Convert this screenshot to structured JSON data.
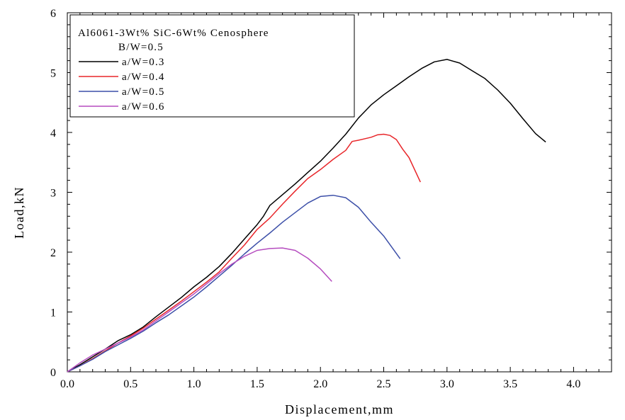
{
  "chart_data": {
    "type": "line",
    "xlabel": "Displacement,mm",
    "ylabel": "Load,kN",
    "xlim": [
      0,
      4.3
    ],
    "ylim": [
      0,
      6
    ],
    "xticks": [
      "0.0",
      "0.5",
      "1.0",
      "1.5",
      "2.0",
      "2.5",
      "3.0",
      "3.5",
      "4.0"
    ],
    "yticks": [
      "0",
      "1",
      "2",
      "3",
      "4",
      "5",
      "6"
    ],
    "grid": false,
    "legend_position": "top-left",
    "legend_title": [
      "Al6061-3Wt% SiC-6Wt% Cenosphere",
      "B/W=0.5"
    ],
    "series": [
      {
        "name": "a/W=0.3",
        "color": "#000000",
        "points": [
          [
            0,
            0
          ],
          [
            0.1,
            0.12
          ],
          [
            0.2,
            0.25
          ],
          [
            0.3,
            0.38
          ],
          [
            0.4,
            0.52
          ],
          [
            0.5,
            0.62
          ],
          [
            0.6,
            0.75
          ],
          [
            0.7,
            0.92
          ],
          [
            0.8,
            1.08
          ],
          [
            0.9,
            1.24
          ],
          [
            1.0,
            1.42
          ],
          [
            1.1,
            1.58
          ],
          [
            1.2,
            1.76
          ],
          [
            1.3,
            1.98
          ],
          [
            1.4,
            2.22
          ],
          [
            1.5,
            2.46
          ],
          [
            1.55,
            2.6
          ],
          [
            1.6,
            2.78
          ],
          [
            1.7,
            2.96
          ],
          [
            1.8,
            3.14
          ],
          [
            1.9,
            3.33
          ],
          [
            2.0,
            3.52
          ],
          [
            2.1,
            3.74
          ],
          [
            2.2,
            3.97
          ],
          [
            2.3,
            4.24
          ],
          [
            2.4,
            4.46
          ],
          [
            2.5,
            4.63
          ],
          [
            2.6,
            4.78
          ],
          [
            2.7,
            4.93
          ],
          [
            2.8,
            5.07
          ],
          [
            2.9,
            5.18
          ],
          [
            3.0,
            5.22
          ],
          [
            3.1,
            5.16
          ],
          [
            3.2,
            5.03
          ],
          [
            3.3,
            4.9
          ],
          [
            3.4,
            4.71
          ],
          [
            3.5,
            4.49
          ],
          [
            3.6,
            4.23
          ],
          [
            3.7,
            3.98
          ],
          [
            3.78,
            3.84
          ]
        ]
      },
      {
        "name": "a/W=0.4",
        "color": "#e8262a",
        "points": [
          [
            0,
            0
          ],
          [
            0.1,
            0.1
          ],
          [
            0.2,
            0.22
          ],
          [
            0.3,
            0.35
          ],
          [
            0.4,
            0.48
          ],
          [
            0.5,
            0.6
          ],
          [
            0.6,
            0.73
          ],
          [
            0.7,
            0.88
          ],
          [
            0.8,
            1.03
          ],
          [
            0.9,
            1.18
          ],
          [
            1.0,
            1.34
          ],
          [
            1.1,
            1.5
          ],
          [
            1.2,
            1.67
          ],
          [
            1.3,
            1.9
          ],
          [
            1.4,
            2.12
          ],
          [
            1.5,
            2.38
          ],
          [
            1.6,
            2.57
          ],
          [
            1.7,
            2.8
          ],
          [
            1.8,
            3.02
          ],
          [
            1.9,
            3.23
          ],
          [
            2.0,
            3.38
          ],
          [
            2.1,
            3.55
          ],
          [
            2.2,
            3.7
          ],
          [
            2.25,
            3.85
          ],
          [
            2.3,
            3.87
          ],
          [
            2.4,
            3.92
          ],
          [
            2.45,
            3.96
          ],
          [
            2.5,
            3.97
          ],
          [
            2.55,
            3.95
          ],
          [
            2.6,
            3.88
          ],
          [
            2.65,
            3.72
          ],
          [
            2.7,
            3.58
          ],
          [
            2.79,
            3.17
          ]
        ]
      },
      {
        "name": "a/W=0.5",
        "color": "#3c4fa8",
        "points": [
          [
            0,
            0
          ],
          [
            0.1,
            0.1
          ],
          [
            0.2,
            0.21
          ],
          [
            0.3,
            0.34
          ],
          [
            0.4,
            0.45
          ],
          [
            0.5,
            0.56
          ],
          [
            0.6,
            0.68
          ],
          [
            0.7,
            0.82
          ],
          [
            0.8,
            0.95
          ],
          [
            0.9,
            1.1
          ],
          [
            1.0,
            1.25
          ],
          [
            1.1,
            1.42
          ],
          [
            1.2,
            1.6
          ],
          [
            1.3,
            1.78
          ],
          [
            1.4,
            1.97
          ],
          [
            1.5,
            2.15
          ],
          [
            1.6,
            2.32
          ],
          [
            1.7,
            2.5
          ],
          [
            1.8,
            2.66
          ],
          [
            1.9,
            2.82
          ],
          [
            2.0,
            2.93
          ],
          [
            2.1,
            2.95
          ],
          [
            2.2,
            2.91
          ],
          [
            2.3,
            2.75
          ],
          [
            2.4,
            2.5
          ],
          [
            2.5,
            2.27
          ],
          [
            2.63,
            1.89
          ]
        ]
      },
      {
        "name": "a/W=0.6",
        "color": "#b54cbf",
        "points": [
          [
            0,
            0
          ],
          [
            0.1,
            0.15
          ],
          [
            0.2,
            0.28
          ],
          [
            0.3,
            0.38
          ],
          [
            0.4,
            0.48
          ],
          [
            0.5,
            0.58
          ],
          [
            0.6,
            0.7
          ],
          [
            0.7,
            0.85
          ],
          [
            0.8,
            1.0
          ],
          [
            0.9,
            1.15
          ],
          [
            1.0,
            1.3
          ],
          [
            1.1,
            1.47
          ],
          [
            1.2,
            1.64
          ],
          [
            1.3,
            1.8
          ],
          [
            1.4,
            1.93
          ],
          [
            1.5,
            2.03
          ],
          [
            1.6,
            2.06
          ],
          [
            1.7,
            2.07
          ],
          [
            1.8,
            2.03
          ],
          [
            1.9,
            1.9
          ],
          [
            2.0,
            1.72
          ],
          [
            2.09,
            1.51
          ]
        ]
      }
    ]
  }
}
